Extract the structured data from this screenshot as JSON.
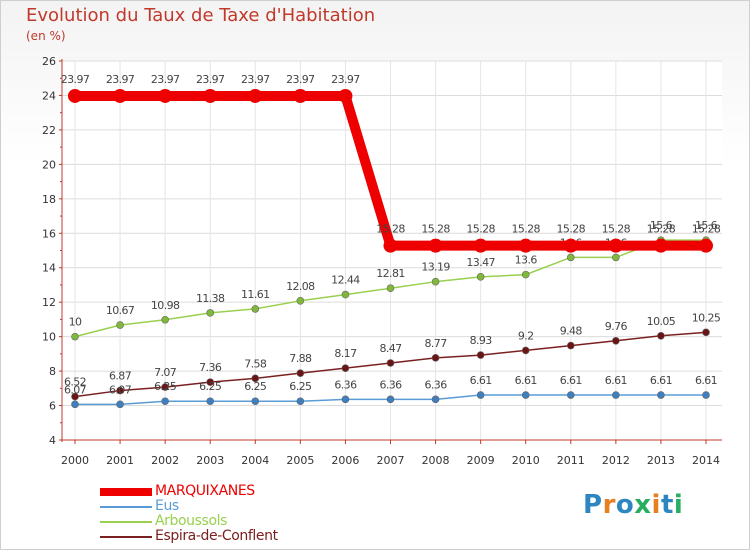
{
  "chart_data": {
    "type": "line",
    "title": "Evolution du Taux de Taxe d'Habitation",
    "subtitle": "(en %)",
    "xlabel": "",
    "ylabel": "",
    "categories": [
      "2000",
      "2001",
      "2002",
      "2003",
      "2004",
      "2005",
      "2006",
      "2007",
      "2008",
      "2009",
      "2010",
      "2011",
      "2012",
      "2013",
      "2014"
    ],
    "ylim": [
      4,
      26
    ],
    "yticks": [
      4,
      6,
      8,
      10,
      12,
      14,
      16,
      18,
      20,
      22,
      24,
      26
    ],
    "grid": true,
    "legend_position": "bottom-left",
    "series": [
      {
        "name": "MARQUIXANES",
        "color": "#ee0000",
        "values": [
          23.97,
          23.97,
          23.97,
          23.97,
          23.97,
          23.97,
          23.97,
          15.28,
          15.28,
          15.28,
          15.28,
          15.28,
          15.28,
          15.28,
          15.28
        ],
        "labels": [
          "23.97",
          "23.97",
          "23.97",
          "23.97",
          "23.97",
          "23.97",
          "23.97",
          "15.28",
          "15.28",
          "15.28",
          "15.28",
          "15.28",
          "15.28",
          "15.28",
          "15.28"
        ]
      },
      {
        "name": "Eus",
        "color": "#5b9bd5",
        "values": [
          6.07,
          6.07,
          6.25,
          6.25,
          6.25,
          6.25,
          6.36,
          6.36,
          6.36,
          6.61,
          6.61,
          6.61,
          6.61,
          6.61,
          6.61
        ],
        "labels": [
          "6.07",
          "6.07",
          "6.25",
          "6.25",
          "6.25",
          "6.25",
          "6.36",
          "6.36",
          "6.36",
          "6.61",
          "6.61",
          "6.61",
          "6.61",
          "6.61",
          "6.61"
        ]
      },
      {
        "name": "Arboussols",
        "color": "#99d04f",
        "values": [
          10,
          10.67,
          10.98,
          11.38,
          11.61,
          12.08,
          12.44,
          12.81,
          13.19,
          13.47,
          13.6,
          14.6,
          14.6,
          15.6,
          15.6
        ],
        "labels": [
          "10",
          "10.67",
          "10.98",
          "11.38",
          "11.61",
          "12.08",
          "12.44",
          "12.81",
          "13.19",
          "13.47",
          "13.6",
          "14.6",
          "14.6",
          "15.6",
          "15.6"
        ]
      },
      {
        "name": "Espira-de-Conflent",
        "color": "#7b2020",
        "values": [
          6.52,
          6.87,
          7.07,
          7.36,
          7.58,
          7.88,
          8.17,
          8.47,
          8.77,
          8.93,
          9.2,
          9.48,
          9.76,
          10.05,
          10.25
        ],
        "labels": [
          "6.52",
          "6.87",
          "7.07",
          "7.36",
          "7.58",
          "7.88",
          "8.17",
          "8.47",
          "8.77",
          "8.93",
          "9.2",
          "9.48",
          "9.76",
          "10.05",
          "10.25"
        ]
      }
    ]
  },
  "branding": {
    "letters": [
      "P",
      "r",
      "o",
      "x",
      "i",
      "t",
      "i"
    ],
    "colors": [
      "#2e86c1",
      "#e67e22",
      "#2e86c1",
      "#27ae60",
      "#e67e22",
      "#2e86c1",
      "#27ae60"
    ]
  }
}
